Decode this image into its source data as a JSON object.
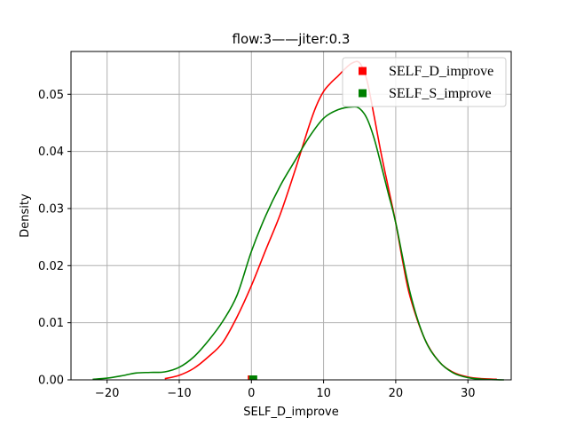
{
  "chart_data": {
    "type": "line",
    "title": "flow:3——jiter:0.3",
    "xlabel": "SELF_D_improve",
    "ylabel": "Density",
    "xlim": [
      -25,
      36
    ],
    "ylim": [
      0,
      0.0575
    ],
    "xticks": [
      -20,
      -10,
      0,
      10,
      20,
      30
    ],
    "xtick_labels": [
      "−20",
      "−10",
      "0",
      "10",
      "20",
      "30"
    ],
    "yticks": [
      0,
      0.01,
      0.02,
      0.03,
      0.04,
      0.05
    ],
    "ytick_labels": [
      "0.00",
      "0.01",
      "0.02",
      "0.03",
      "0.04",
      "0.05"
    ],
    "grid": true,
    "legend_position": "top-right",
    "series": [
      {
        "name": "SELF_D_improve",
        "color": "#ff0000",
        "marker": "square",
        "x": [
          -12,
          -10,
          -8,
          -6,
          -4,
          -2,
          0,
          2,
          4,
          6,
          8,
          9,
          10,
          11,
          12,
          13,
          14,
          15,
          16,
          17,
          18,
          19,
          20,
          21,
          22,
          24,
          26,
          28,
          30,
          32,
          34
        ],
        "y": [
          0.0002,
          0.0008,
          0.002,
          0.004,
          0.0065,
          0.011,
          0.0165,
          0.0228,
          0.029,
          0.0365,
          0.0445,
          0.048,
          0.0505,
          0.052,
          0.0532,
          0.0545,
          0.0555,
          0.0555,
          0.0525,
          0.0462,
          0.0395,
          0.0335,
          0.0275,
          0.0205,
          0.0145,
          0.0072,
          0.0032,
          0.0013,
          0.0005,
          0.0002,
          0.0001
        ]
      },
      {
        "name": "SELF_S_improve",
        "color": "#008000",
        "marker": "square",
        "x": [
          -22,
          -20,
          -18,
          -16,
          -14,
          -12,
          -10,
          -8,
          -6,
          -4,
          -2,
          0,
          2,
          4,
          6,
          8,
          10,
          12,
          14,
          15,
          16,
          17,
          18,
          19,
          20,
          22,
          24,
          26,
          28,
          30,
          32,
          35
        ],
        "y": [
          0.0001,
          0.0003,
          0.0007,
          0.0012,
          0.0013,
          0.0014,
          0.0022,
          0.004,
          0.0068,
          0.0102,
          0.0148,
          0.0225,
          0.0288,
          0.034,
          0.0383,
          0.0425,
          0.0458,
          0.0473,
          0.0478,
          0.0475,
          0.0458,
          0.0423,
          0.0375,
          0.0325,
          0.0275,
          0.0152,
          0.0072,
          0.0032,
          0.0012,
          0.0004,
          0.0001,
          0.0
        ]
      }
    ],
    "rug_points": [
      {
        "x": -0.2,
        "color": "#ff0000"
      },
      {
        "x": 0.3,
        "color": "#ff0000"
      },
      {
        "x": 0.0,
        "color": "#008000"
      },
      {
        "x": 0.5,
        "color": "#008000"
      }
    ]
  }
}
